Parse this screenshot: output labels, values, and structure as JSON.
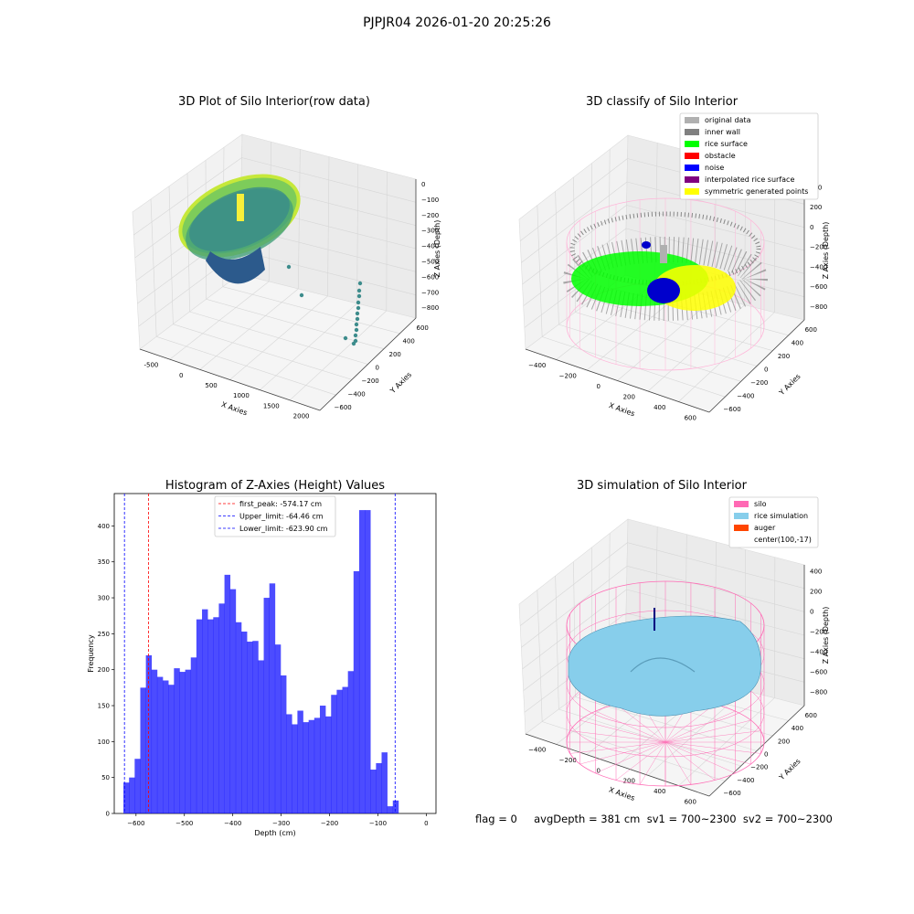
{
  "suptitle": "PJPJR04 2026-01-20 20:25:26",
  "panels": {
    "raw": {
      "title": "3D Plot of Silo Interior(row data)",
      "xlabel": "X Axies",
      "ylabel": "Y Axies",
      "zlabel": "Z Axies (Depth)",
      "xticks": [
        "-500",
        "0",
        "500",
        "1000",
        "1500",
        "2000"
      ],
      "yticks": [
        "600",
        "400",
        "200",
        "0",
        "−200",
        "−400",
        "−600"
      ],
      "zticks": [
        "0",
        "−100",
        "−200",
        "−300",
        "−400",
        "−500",
        "−600",
        "−700",
        "−800"
      ]
    },
    "classify": {
      "title": "3D classify of Silo Interior",
      "xlabel": "X Axies",
      "ylabel": "Y Axies",
      "zlabel": "Z Axies (Depth)",
      "xticks": [
        "−400",
        "−200",
        "0",
        "200",
        "400",
        "600"
      ],
      "yticks": [
        "600",
        "400",
        "200",
        "0",
        "−200",
        "−400",
        "−600"
      ],
      "zticks": [
        "400",
        "200",
        "0",
        "−200",
        "−400",
        "−600",
        "−800"
      ],
      "legend": [
        {
          "label": "original data",
          "color": "#b0b0b0"
        },
        {
          "label": "inner wall",
          "color": "#808080"
        },
        {
          "label": "rice surface",
          "color": "#00ff00"
        },
        {
          "label": "obstacle",
          "color": "#ff0000"
        },
        {
          "label": "noise",
          "color": "#0000ff"
        },
        {
          "label": "interpolated rice surface",
          "color": "#800080"
        },
        {
          "label": "symmetric generated points",
          "color": "#ffff00"
        }
      ]
    },
    "simulation": {
      "title": "3D simulation of Silo Interior",
      "xlabel": "X Axies",
      "ylabel": "Y Axies",
      "zlabel": "Z Axies (Depth)",
      "xticks": [
        "−400",
        "−200",
        "0",
        "200",
        "400",
        "600"
      ],
      "yticks": [
        "600",
        "400",
        "200",
        "0",
        "−200",
        "−400",
        "−600"
      ],
      "zticks": [
        "400",
        "200",
        "0",
        "−200",
        "−400",
        "−600",
        "−800"
      ],
      "legend": [
        {
          "label": "silo",
          "color": "#ff69b4"
        },
        {
          "label": "rice simulation",
          "color": "#87ceeb"
        },
        {
          "label": "auger",
          "color": "#ff4500"
        },
        {
          "label": "center(100,-17)",
          "color": ""
        }
      ]
    }
  },
  "footer": "flag = 0     avgDepth = 381 cm  sv1 = 700~2300  sv2 = 700~2300",
  "chart_data": {
    "type": "bar",
    "title": "Histogram of Z-Axies (Height) Values",
    "xlabel": "Depth (cm)",
    "ylabel": "Frequency",
    "xlim": [
      -645,
      20
    ],
    "ylim": [
      0,
      445
    ],
    "xticks": [
      "−600",
      "−500",
      "−400",
      "−300",
      "−200",
      "−100",
      "0"
    ],
    "yticks": [
      "0",
      "50",
      "100",
      "150",
      "200",
      "250",
      "300",
      "350",
      "400"
    ],
    "bar_color": "#0000ff",
    "bin_start": -626,
    "bin_width": 11.6,
    "values": [
      43,
      50,
      76,
      175,
      220,
      200,
      190,
      185,
      179,
      202,
      197,
      200,
      217,
      270,
      284,
      270,
      273,
      292,
      332,
      312,
      266,
      253,
      239,
      240,
      213,
      300,
      320,
      235,
      192,
      138,
      124,
      143,
      127,
      130,
      133,
      150,
      135,
      165,
      172,
      176,
      198,
      337,
      422,
      422,
      61,
      70,
      85,
      10,
      18
    ],
    "lines": [
      {
        "label": "first_peak: -574.17 cm",
        "x": -574.17,
        "color": "#ff0000"
      },
      {
        "label": "Upper_limit: -64.46 cm",
        "x": -64.46,
        "color": "#0000ff"
      },
      {
        "label": "Lower_limit: -623.90 cm",
        "x": -623.9,
        "color": "#0000ff"
      }
    ],
    "legend_position": "upper center"
  }
}
